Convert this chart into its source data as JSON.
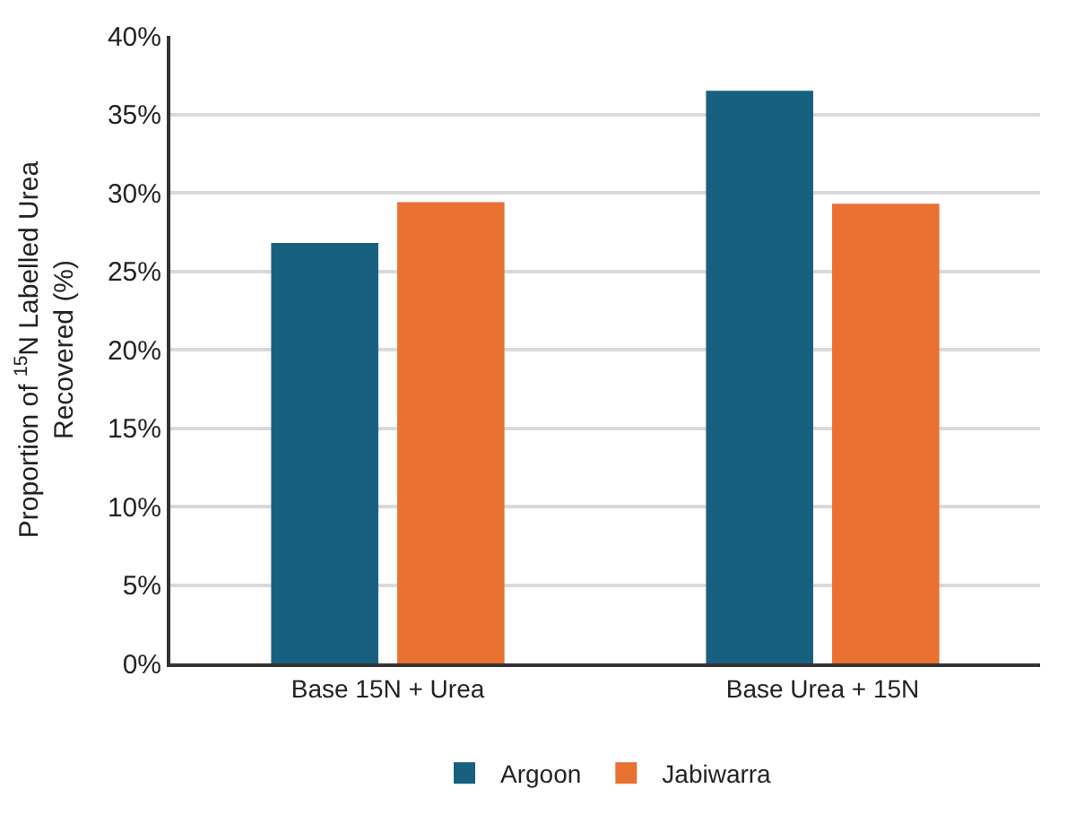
{
  "chart_data": {
    "type": "bar",
    "ylabel": "Proportion of $^{15}$N Labelled Urea Recovered (%)",
    "categories": [
      "Base 15N + Urea",
      "Base Urea + 15N"
    ],
    "series": [
      {
        "name": "Argoon",
        "color": "#17607f",
        "values": [
          26.8,
          36.5
        ]
      },
      {
        "name": "Jabiwarra",
        "color": "#e97132",
        "values": [
          29.4,
          29.3
        ]
      }
    ],
    "ylim": [
      0,
      40
    ],
    "yticks": [
      {
        "value": 0,
        "label": "0%"
      },
      {
        "value": 5,
        "label": "5%"
      },
      {
        "value": 10,
        "label": "10%"
      },
      {
        "value": 15,
        "label": "15%"
      },
      {
        "value": 20,
        "label": "20%"
      },
      {
        "value": 25,
        "label": "25%"
      },
      {
        "value": 30,
        "label": "30%"
      },
      {
        "value": 35,
        "label": "35%"
      },
      {
        "value": 40,
        "label": "40%"
      }
    ],
    "grid": "y",
    "legend": "bottom"
  }
}
